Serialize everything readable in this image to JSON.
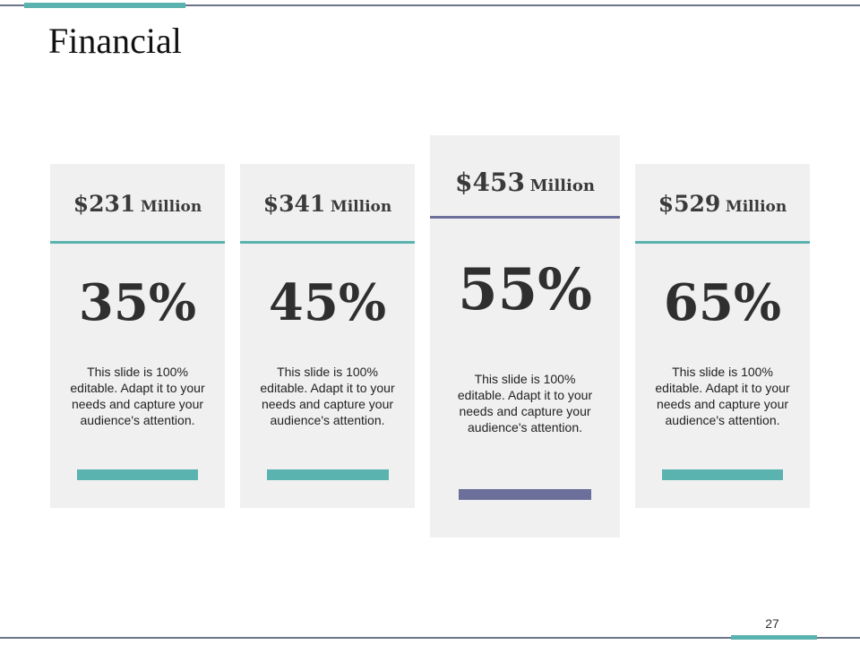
{
  "slide": {
    "title": "Financial",
    "page_number": "27"
  },
  "colors": {
    "teal": "#5bb3b0",
    "slate": "#6b6f9a",
    "card_bg": "#f0f0f0"
  },
  "cards": [
    {
      "amount": "$231",
      "unit": "Million",
      "percent": "35%",
      "description": "This slide is 100% editable. Adapt it to your needs and capture your audience's attention."
    },
    {
      "amount": "$341",
      "unit": "Million",
      "percent": "45%",
      "description": "This slide is 100% editable. Adapt it to your needs and capture your audience's attention."
    },
    {
      "amount": "$453",
      "unit": "Million",
      "percent": "55%",
      "description": "This slide is 100% editable. Adapt it to your needs and capture your audience's attention."
    },
    {
      "amount": "$529",
      "unit": "Million",
      "percent": "65%",
      "description": "This slide is 100% editable. Adapt it to your needs and capture your audience's attention."
    }
  ]
}
